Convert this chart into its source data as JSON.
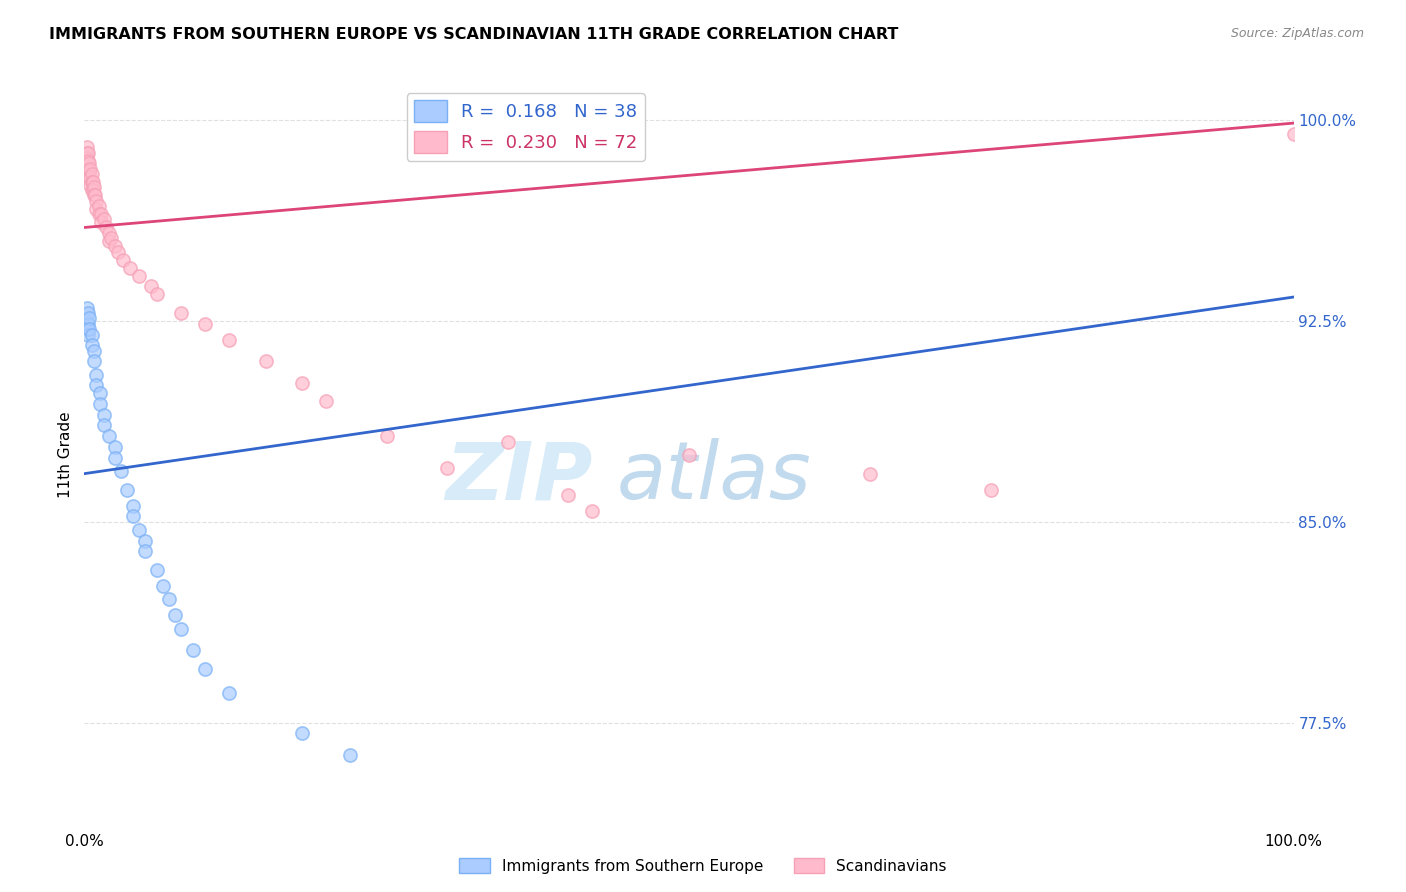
{
  "title": "IMMIGRANTS FROM SOUTHERN EUROPE VS SCANDINAVIAN 11TH GRADE CORRELATION CHART",
  "source": "Source: ZipAtlas.com",
  "ylabel": "11th Grade",
  "watermark": "ZIPatlas",
  "blue_scatter": [
    [
      0.002,
      0.93
    ],
    [
      0.002,
      0.925
    ],
    [
      0.002,
      0.922
    ],
    [
      0.003,
      0.928
    ],
    [
      0.003,
      0.924
    ],
    [
      0.003,
      0.92
    ],
    [
      0.004,
      0.926
    ],
    [
      0.004,
      0.922
    ],
    [
      0.006,
      0.92
    ],
    [
      0.006,
      0.916
    ],
    [
      0.008,
      0.914
    ],
    [
      0.008,
      0.91
    ],
    [
      0.01,
      0.905
    ],
    [
      0.01,
      0.901
    ],
    [
      0.013,
      0.898
    ],
    [
      0.013,
      0.894
    ],
    [
      0.016,
      0.89
    ],
    [
      0.016,
      0.886
    ],
    [
      0.02,
      0.882
    ],
    [
      0.025,
      0.878
    ],
    [
      0.025,
      0.874
    ],
    [
      0.03,
      0.869
    ],
    [
      0.035,
      0.862
    ],
    [
      0.04,
      0.856
    ],
    [
      0.04,
      0.852
    ],
    [
      0.045,
      0.847
    ],
    [
      0.05,
      0.843
    ],
    [
      0.05,
      0.839
    ],
    [
      0.06,
      0.832
    ],
    [
      0.065,
      0.826
    ],
    [
      0.07,
      0.821
    ],
    [
      0.075,
      0.815
    ],
    [
      0.08,
      0.81
    ],
    [
      0.09,
      0.802
    ],
    [
      0.1,
      0.795
    ],
    [
      0.12,
      0.786
    ],
    [
      0.18,
      0.771
    ],
    [
      0.22,
      0.763
    ]
  ],
  "pink_scatter": [
    [
      0.002,
      0.99
    ],
    [
      0.002,
      0.988
    ],
    [
      0.002,
      0.986
    ],
    [
      0.003,
      0.988
    ],
    [
      0.003,
      0.985
    ],
    [
      0.003,
      0.982
    ],
    [
      0.004,
      0.984
    ],
    [
      0.004,
      0.981
    ],
    [
      0.004,
      0.978
    ],
    [
      0.005,
      0.982
    ],
    [
      0.005,
      0.979
    ],
    [
      0.005,
      0.976
    ],
    [
      0.006,
      0.98
    ],
    [
      0.006,
      0.977
    ],
    [
      0.006,
      0.974
    ],
    [
      0.007,
      0.977
    ],
    [
      0.007,
      0.974
    ],
    [
      0.008,
      0.975
    ],
    [
      0.008,
      0.972
    ],
    [
      0.009,
      0.972
    ],
    [
      0.01,
      0.97
    ],
    [
      0.01,
      0.967
    ],
    [
      0.012,
      0.968
    ],
    [
      0.012,
      0.965
    ],
    [
      0.014,
      0.965
    ],
    [
      0.014,
      0.962
    ],
    [
      0.016,
      0.963
    ],
    [
      0.018,
      0.96
    ],
    [
      0.02,
      0.958
    ],
    [
      0.02,
      0.955
    ],
    [
      0.022,
      0.956
    ],
    [
      0.025,
      0.953
    ],
    [
      0.028,
      0.951
    ],
    [
      0.032,
      0.948
    ],
    [
      0.038,
      0.945
    ],
    [
      0.045,
      0.942
    ],
    [
      0.055,
      0.938
    ],
    [
      0.06,
      0.935
    ],
    [
      0.08,
      0.928
    ],
    [
      0.1,
      0.924
    ],
    [
      0.12,
      0.918
    ],
    [
      0.15,
      0.91
    ],
    [
      0.18,
      0.902
    ],
    [
      0.2,
      0.895
    ],
    [
      0.25,
      0.882
    ],
    [
      0.3,
      0.87
    ],
    [
      0.35,
      0.88
    ],
    [
      0.4,
      0.86
    ],
    [
      0.42,
      0.854
    ],
    [
      0.5,
      0.875
    ],
    [
      0.65,
      0.868
    ],
    [
      0.75,
      0.862
    ],
    [
      1.0,
      0.995
    ]
  ],
  "blue_line_x": [
    0.0,
    1.0
  ],
  "blue_line_y": [
    0.868,
    0.934
  ],
  "pink_line_x": [
    0.0,
    1.0
  ],
  "pink_line_y": [
    0.96,
    0.999
  ],
  "scatter_size": 90,
  "blue_color": "#7ab0f5",
  "pink_color": "#f5a0b5",
  "blue_face_color": "#aaccff",
  "pink_face_color": "#ffbbcc",
  "blue_line_color": "#3366cc",
  "pink_line_color": "#dd4477",
  "background": "#ffffff",
  "grid_color": "#e0e0e0",
  "xlim": [
    0,
    1
  ],
  "ylim": [
    0.735,
    1.015
  ],
  "yticks": [
    0.775,
    0.85,
    0.925,
    1.0
  ],
  "ytick_labels": [
    "77.5%",
    "85.0%",
    "92.5%",
    "100.0%"
  ]
}
